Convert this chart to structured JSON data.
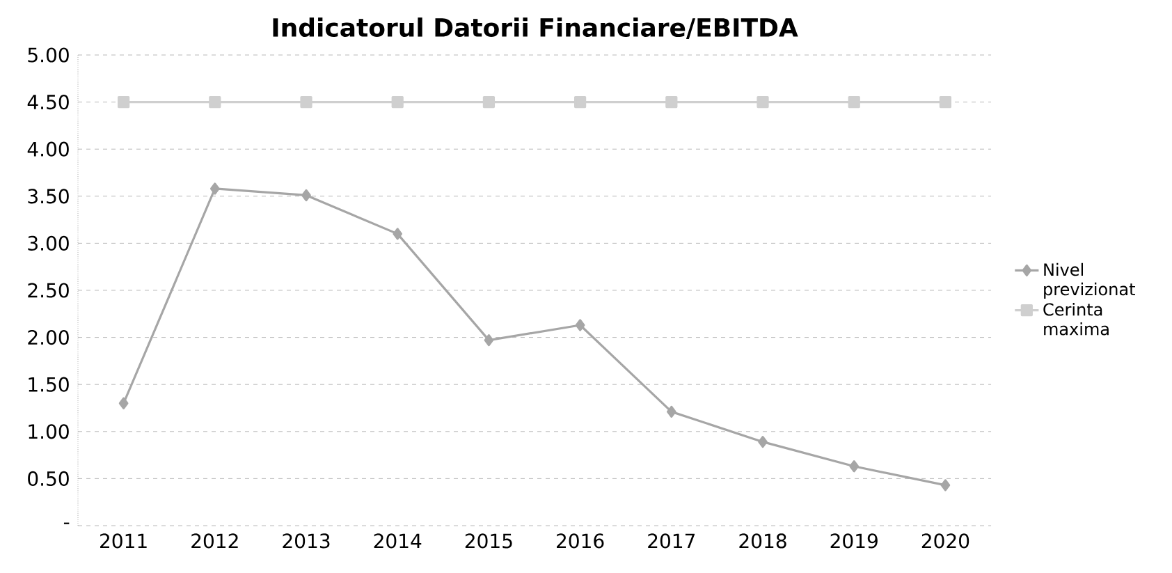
{
  "chart_data": {
    "type": "line",
    "title": "Indicatorul Datorii Financiare/EBITDA",
    "categories": [
      "2011",
      "2012",
      "2013",
      "2014",
      "2015",
      "2016",
      "2017",
      "2018",
      "2019",
      "2020"
    ],
    "series": [
      {
        "name": "Nivel previzionat",
        "color": "#a6a6a6",
        "marker": "diamond",
        "values": [
          1.3,
          3.58,
          3.51,
          3.1,
          1.97,
          2.13,
          1.21,
          0.89,
          0.63,
          0.43
        ]
      },
      {
        "name": "Cerinta maxima",
        "color": "#cfcfcf",
        "marker": "square",
        "values": [
          4.5,
          4.5,
          4.5,
          4.5,
          4.5,
          4.5,
          4.5,
          4.5,
          4.5,
          4.5
        ]
      }
    ],
    "ylim": [
      0,
      5
    ],
    "yticks": [
      {
        "value": 0,
        "label": "-"
      },
      {
        "value": 0.5,
        "label": "0.50"
      },
      {
        "value": 1,
        "label": "1.00"
      },
      {
        "value": 1.5,
        "label": "1.50"
      },
      {
        "value": 2,
        "label": "2.00"
      },
      {
        "value": 2.5,
        "label": "2.50"
      },
      {
        "value": 3,
        "label": "3.00"
      },
      {
        "value": 3.5,
        "label": "3.50"
      },
      {
        "value": 4,
        "label": "4.00"
      },
      {
        "value": 4.5,
        "label": "4.50"
      },
      {
        "value": 5,
        "label": "5.00"
      }
    ],
    "grid": "y",
    "legend": "right",
    "line_style": "solid"
  }
}
